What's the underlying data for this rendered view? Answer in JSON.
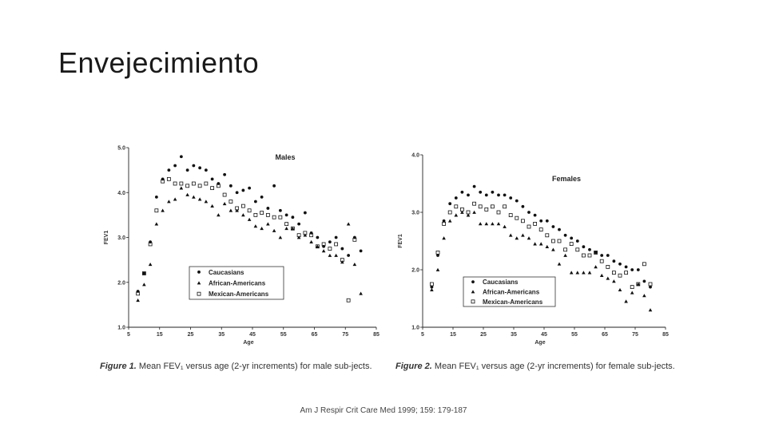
{
  "slide": {
    "title": "Envejecimiento",
    "citation": "Am J Respir Crit Care Med 1999; 159: 179-187"
  },
  "captions": [
    {
      "label": "Figure 1.",
      "text": "Mean FEV₁ versus age (2-yr increments) for male sub-jects."
    },
    {
      "label": "Figure 2.",
      "text": "Mean FEV₁ versus age (2-yr increments) for female sub-jects."
    }
  ],
  "chart_data": [
    {
      "type": "scatter",
      "title": "Males",
      "xlabel": "Age",
      "ylabel": "FEV1",
      "xlim": [
        5,
        85
      ],
      "ylim": [
        1.0,
        5.0
      ],
      "xticks": [
        "5",
        "15",
        "25",
        "35",
        "45",
        "55",
        "65",
        "75",
        "85"
      ],
      "yticks": [
        "1.0",
        "2.0",
        "3.0",
        "4.0",
        "5.0"
      ],
      "legend": "bottom-left",
      "series": [
        {
          "name": "Caucasians",
          "marker": "circle-filled",
          "x": [
            8,
            10,
            12,
            14,
            16,
            18,
            20,
            22,
            24,
            26,
            28,
            30,
            32,
            34,
            36,
            38,
            40,
            42,
            44,
            46,
            48,
            50,
            52,
            54,
            56,
            58,
            60,
            62,
            64,
            66,
            68,
            70,
            72,
            74,
            76,
            78,
            80
          ],
          "y": [
            1.8,
            2.2,
            2.9,
            3.9,
            4.3,
            4.5,
            4.6,
            4.8,
            4.5,
            4.6,
            4.55,
            4.5,
            4.3,
            4.2,
            4.4,
            4.15,
            4.0,
            4.05,
            4.1,
            3.8,
            3.9,
            3.65,
            4.15,
            3.6,
            3.5,
            3.45,
            3.3,
            3.55,
            3.1,
            3.0,
            2.8,
            2.9,
            3.0,
            2.75,
            2.6,
            3.0,
            2.7
          ]
        },
        {
          "name": "African-Americans",
          "marker": "triangle-filled",
          "x": [
            8,
            10,
            12,
            14,
            16,
            18,
            20,
            22,
            24,
            26,
            28,
            30,
            32,
            34,
            36,
            38,
            40,
            42,
            44,
            46,
            48,
            50,
            52,
            54,
            56,
            58,
            60,
            62,
            64,
            66,
            68,
            70,
            72,
            74,
            76,
            78,
            80
          ],
          "y": [
            1.6,
            1.95,
            2.4,
            3.3,
            3.6,
            3.8,
            3.85,
            4.1,
            3.95,
            3.9,
            3.85,
            3.8,
            3.7,
            3.5,
            3.75,
            3.6,
            3.6,
            3.5,
            3.4,
            3.25,
            3.2,
            3.3,
            3.15,
            3.0,
            3.2,
            3.2,
            3.0,
            3.05,
            2.9,
            2.8,
            2.7,
            2.6,
            2.6,
            2.45,
            3.3,
            2.4,
            1.75
          ]
        },
        {
          "name": "Mexican-Americans",
          "marker": "square-open",
          "x": [
            8,
            10,
            12,
            14,
            16,
            18,
            20,
            22,
            24,
            26,
            28,
            30,
            32,
            34,
            36,
            38,
            40,
            42,
            44,
            46,
            48,
            50,
            52,
            54,
            56,
            58,
            60,
            62,
            64,
            66,
            68,
            70,
            72,
            74,
            76,
            78
          ],
          "y": [
            1.75,
            2.2,
            2.85,
            3.6,
            4.25,
            4.3,
            4.2,
            4.2,
            4.15,
            4.2,
            4.15,
            4.2,
            4.1,
            4.15,
            3.95,
            3.8,
            3.65,
            3.7,
            3.6,
            3.5,
            3.55,
            3.5,
            3.45,
            3.45,
            3.3,
            3.2,
            3.05,
            3.1,
            3.05,
            2.8,
            2.85,
            2.75,
            2.85,
            2.5,
            1.6,
            2.95
          ]
        }
      ]
    },
    {
      "type": "scatter",
      "title": "Females",
      "xlabel": "Age",
      "ylabel": "FEV1",
      "xlim": [
        5,
        85
      ],
      "ylim": [
        1.0,
        4.0
      ],
      "xticks": [
        "5",
        "15",
        "25",
        "35",
        "45",
        "55",
        "65",
        "75",
        "85"
      ],
      "yticks": [
        "1.0",
        "2.0",
        "3.0",
        "4.0"
      ],
      "legend": "bottom-left",
      "series": [
        {
          "name": "Caucasians",
          "marker": "circle-filled",
          "x": [
            8,
            10,
            12,
            14,
            16,
            18,
            20,
            22,
            24,
            26,
            28,
            30,
            32,
            34,
            36,
            38,
            40,
            42,
            44,
            46,
            48,
            50,
            52,
            54,
            56,
            58,
            60,
            62,
            64,
            66,
            68,
            70,
            72,
            74,
            76,
            78,
            80
          ],
          "y": [
            1.7,
            2.25,
            2.85,
            3.15,
            3.25,
            3.35,
            3.3,
            3.45,
            3.35,
            3.3,
            3.35,
            3.3,
            3.3,
            3.25,
            3.2,
            3.1,
            3.0,
            2.95,
            2.85,
            2.85,
            2.75,
            2.7,
            2.6,
            2.55,
            2.5,
            2.4,
            2.35,
            2.3,
            2.25,
            2.25,
            2.15,
            2.1,
            2.05,
            2.0,
            2.0,
            1.8,
            1.7
          ]
        },
        {
          "name": "African-Americans",
          "marker": "triangle-filled",
          "x": [
            8,
            10,
            12,
            14,
            16,
            18,
            20,
            22,
            24,
            26,
            28,
            30,
            32,
            34,
            36,
            38,
            40,
            42,
            44,
            46,
            48,
            50,
            52,
            54,
            56,
            58,
            60,
            62,
            64,
            66,
            68,
            70,
            72,
            74,
            76,
            78,
            80
          ],
          "y": [
            1.65,
            2.0,
            2.55,
            2.85,
            2.95,
            3.0,
            2.95,
            3.0,
            2.8,
            2.8,
            2.8,
            2.8,
            2.75,
            2.6,
            2.55,
            2.6,
            2.55,
            2.45,
            2.45,
            2.4,
            2.35,
            2.1,
            2.25,
            1.95,
            1.95,
            1.95,
            1.95,
            2.05,
            1.9,
            1.85,
            1.8,
            1.65,
            1.45,
            1.6,
            1.75,
            1.55,
            1.3
          ]
        },
        {
          "name": "Mexican-Americans",
          "marker": "square-open",
          "x": [
            8,
            10,
            12,
            14,
            16,
            18,
            20,
            22,
            24,
            26,
            28,
            30,
            32,
            34,
            36,
            38,
            40,
            42,
            44,
            46,
            48,
            50,
            52,
            54,
            56,
            58,
            60,
            62,
            64,
            66,
            68,
            70,
            72,
            74,
            76,
            78,
            80
          ],
          "y": [
            1.75,
            2.3,
            2.8,
            3.0,
            3.1,
            3.05,
            3.0,
            3.15,
            3.1,
            3.05,
            3.1,
            3.0,
            3.1,
            2.95,
            2.9,
            2.85,
            2.75,
            2.8,
            2.7,
            2.6,
            2.5,
            2.5,
            2.35,
            2.45,
            2.35,
            2.25,
            2.25,
            2.3,
            2.15,
            2.05,
            1.95,
            1.9,
            1.95,
            1.7,
            1.75,
            2.1,
            1.75
          ]
        }
      ]
    }
  ]
}
